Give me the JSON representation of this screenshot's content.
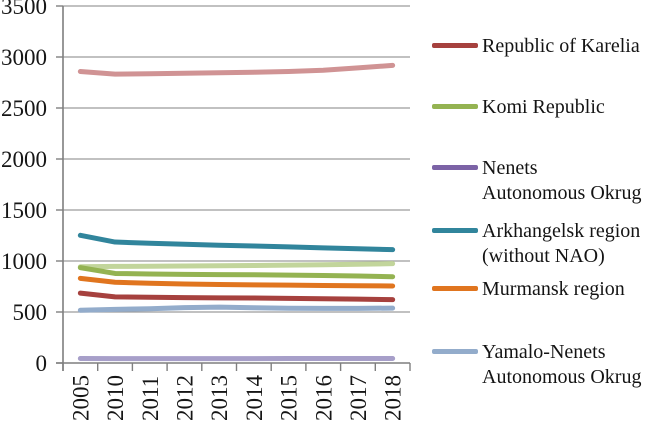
{
  "figure": {
    "background": "#FFFFFF",
    "gridline_color": "#9C9C9C",
    "axis_color": "#7F7F7F",
    "text_color": "#161616"
  },
  "chart_data": {
    "type": "line",
    "title": "",
    "xlabel": "",
    "ylabel": "",
    "grid": true,
    "legend_position": "right",
    "x_categories": [
      "2005",
      "2010",
      "2011",
      "2012",
      "2013",
      "2014",
      "2015",
      "2016",
      "2017",
      "2018"
    ],
    "y_axis": {
      "min": 0,
      "max": 3500,
      "step": 500,
      "tick_labels": [
        "0",
        "500",
        "1000",
        "1500",
        "2000",
        "2500",
        "3000",
        "3500"
      ]
    },
    "series": [
      {
        "label": "Republic of Karelia",
        "color": "#A6413E",
        "in_legend": true,
        "values": [
          685,
          648,
          644,
          641,
          639,
          637,
          634,
          630,
          626,
          621
        ]
      },
      {
        "label": "Komi Republic",
        "color": "#94B352",
        "in_legend": true,
        "values": [
          935,
          878,
          872,
          869,
          867,
          865,
          862,
          858,
          853,
          846
        ]
      },
      {
        "label": "Nenets\nAutonomous Okrug",
        "color": "#7C63A6",
        "line_color": "#A79FC9",
        "in_legend": true,
        "values": [
          44,
          43,
          43,
          43,
          43,
          43,
          44,
          44,
          44,
          44
        ]
      },
      {
        "label": "Arkhangelsk region\n(without NAO)",
        "color": "#31859C",
        "in_legend": true,
        "values": [
          1252,
          1186,
          1174,
          1164,
          1155,
          1147,
          1138,
          1129,
          1120,
          1111
        ]
      },
      {
        "label": "Murmansk region",
        "color": "#E0751F",
        "in_legend": true,
        "values": [
          830,
          792,
          782,
          775,
          770,
          766,
          763,
          760,
          757,
          755
        ]
      },
      {
        "label": "Yamalo-Nenets\nAutonomous Okrug",
        "color": "#93ACCB",
        "in_legend": true,
        "values": [
          517,
          526,
          532,
          543,
          548,
          542,
          537,
          535,
          536,
          538
        ]
      },
      {
        "label": "",
        "color": "#D09394",
        "in_legend": false,
        "values": [
          2858,
          2832,
          2836,
          2841,
          2846,
          2851,
          2858,
          2870,
          2893,
          2918
        ]
      },
      {
        "label": "",
        "color": "#C2D59B",
        "in_legend": false,
        "values": [
          944,
          947,
          949,
          951,
          953,
          956,
          959,
          963,
          968,
          974
        ]
      }
    ]
  }
}
